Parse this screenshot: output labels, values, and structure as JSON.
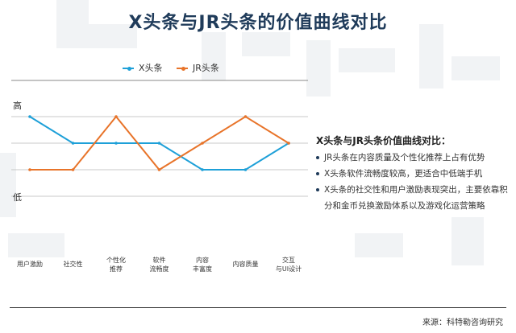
{
  "title": "X头条与JR头条的价值曲线对比",
  "source": "来源：科特勒咨询研究",
  "panel": {
    "title": "X头条与JR头条价值曲线对比：",
    "bullets": [
      "JR头条在内容质量及个性化推荐上占有优势",
      "X头条软件流畅度较高，更适合中低端手机",
      "X头条的社交性和用户激励表现突出，主要依靠积分和金币兑换激励体系以及游戏化运营策略"
    ]
  },
  "colors": {
    "x": "#1ea0d8",
    "jr": "#e8742a",
    "title": "#1f3b5a"
  },
  "chart_data": {
    "type": "line",
    "categories": [
      "用户激励",
      "社交性",
      "个性化推荐",
      "软件流畅度",
      "内容丰富度",
      "内容质量",
      "交互与UI设计"
    ],
    "category_lines": [
      [
        "用户激励"
      ],
      [
        "社交性"
      ],
      [
        "个性化",
        "推荐"
      ],
      [
        "软件",
        "流畅度"
      ],
      [
        "内容",
        "丰富度"
      ],
      [
        "内容质量"
      ],
      [
        "交互",
        "与UI设计"
      ]
    ],
    "ylabels": {
      "high": "高",
      "low": "低"
    },
    "ylim": [
      0,
      5
    ],
    "grid": true,
    "legend_position": "top-left",
    "series": [
      {
        "name": "X头条",
        "values": [
          4,
          3,
          3,
          3,
          2,
          2,
          3
        ]
      },
      {
        "name": "JR头条",
        "values": [
          2,
          2,
          4,
          2,
          3,
          4,
          3
        ]
      }
    ]
  }
}
